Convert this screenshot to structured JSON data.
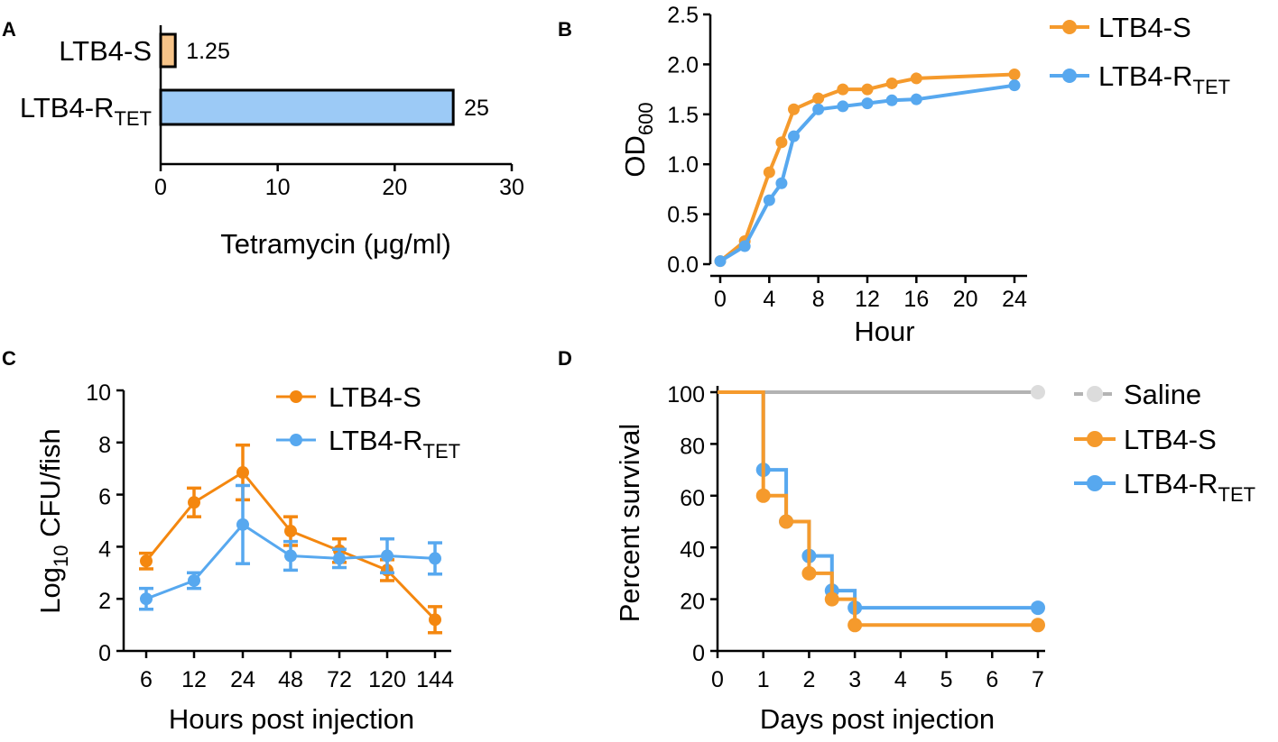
{
  "colors": {
    "orange": "#f59a2c",
    "blue": "#57a8ef",
    "gray": "#b3b3b3",
    "bar_s": "#f7c489",
    "bar_r": "#9ccaf6",
    "orange_c": "#f4870f"
  },
  "chart_data": [
    {
      "panel": "A",
      "type": "bar",
      "orientation": "horizontal",
      "categories": [
        {
          "base": "LTB4-S",
          "sub": ""
        },
        {
          "base": "LTB4-R",
          "sub": "TET"
        }
      ],
      "values": [
        1.25,
        25
      ],
      "value_labels": [
        "1.25",
        "25"
      ],
      "xlabel": "Tetramycin (μg/ml)",
      "xlim": [
        0,
        30
      ],
      "xticks": [
        "0",
        "10",
        "20",
        "30"
      ]
    },
    {
      "panel": "B",
      "type": "line",
      "xlabel": "Hour",
      "ylabel_base": "OD",
      "ylabel_sub": "600",
      "xlim": [
        0,
        24
      ],
      "ylim": [
        0,
        2.5
      ],
      "xticks": [
        "0",
        "4",
        "8",
        "12",
        "16",
        "20",
        "24"
      ],
      "yticks": [
        "0.0",
        "0.5",
        "1.0",
        "1.5",
        "2.0",
        "2.5"
      ],
      "series": [
        {
          "name": "LTB4-S",
          "sub": "",
          "x": [
            0,
            2,
            4,
            5,
            6,
            8,
            10,
            12,
            14,
            16,
            24
          ],
          "y": [
            0.03,
            0.23,
            0.92,
            1.22,
            1.55,
            1.66,
            1.75,
            1.75,
            1.81,
            1.86,
            1.9
          ]
        },
        {
          "name": "LTB4-R",
          "sub": "TET",
          "x": [
            0,
            2,
            4,
            5,
            6,
            8,
            10,
            12,
            14,
            16,
            24
          ],
          "y": [
            0.03,
            0.18,
            0.64,
            0.81,
            1.28,
            1.55,
            1.58,
            1.61,
            1.64,
            1.65,
            1.79
          ]
        }
      ]
    },
    {
      "panel": "C",
      "type": "line",
      "xlabel": "Hours post injection",
      "ylabel_base": "Log",
      "ylabel_sub": "10",
      "ylabel_rest": " CFU/fish",
      "ylim": [
        0,
        10
      ],
      "categories": [
        "6",
        "12",
        "24",
        "48",
        "72",
        "120",
        "144"
      ],
      "yticks": [
        "0",
        "2",
        "4",
        "6",
        "8",
        "10"
      ],
      "series": [
        {
          "name": "LTB4-S",
          "sub": "",
          "values": [
            3.45,
            5.7,
            6.85,
            4.6,
            3.85,
            3.1,
            1.2
          ],
          "errors": [
            0.3,
            0.55,
            1.05,
            0.55,
            0.45,
            0.4,
            0.5
          ]
        },
        {
          "name": "LTB4-R",
          "sub": "TET",
          "values": [
            2.0,
            2.7,
            4.85,
            3.65,
            3.55,
            3.65,
            3.55
          ],
          "errors": [
            0.4,
            0.3,
            1.5,
            0.55,
            0.35,
            0.65,
            0.6
          ]
        }
      ]
    },
    {
      "panel": "D",
      "type": "step",
      "xlabel": "Days post injection",
      "ylabel": "Percent survival",
      "xlim": [
        0,
        7
      ],
      "ylim": [
        0,
        100
      ],
      "xticks": [
        "0",
        "1",
        "2",
        "3",
        "4",
        "5",
        "6",
        "7"
      ],
      "yticks": [
        "0",
        "20",
        "40",
        "60",
        "80",
        "100"
      ],
      "series": [
        {
          "name": "Saline",
          "sub": "",
          "x": [
            0,
            7
          ],
          "y": [
            100,
            100
          ],
          "markers": [
            7
          ]
        },
        {
          "name": "LTB4-S",
          "sub": "",
          "x": [
            0,
            1,
            1.5,
            2,
            2.5,
            3,
            7
          ],
          "y": [
            100,
            60,
            50,
            30,
            20,
            10,
            10
          ],
          "markers": [
            1,
            1.5,
            2,
            2.5,
            3,
            7
          ]
        },
        {
          "name": "LTB4-R",
          "sub": "TET",
          "x": [
            0,
            1,
            1.5,
            2,
            2.5,
            3,
            7
          ],
          "y": [
            100,
            70,
            50,
            36.7,
            23.3,
            16.7,
            16.7
          ],
          "markers": [
            1,
            1.5,
            2,
            2.5,
            3,
            7
          ]
        }
      ]
    }
  ]
}
